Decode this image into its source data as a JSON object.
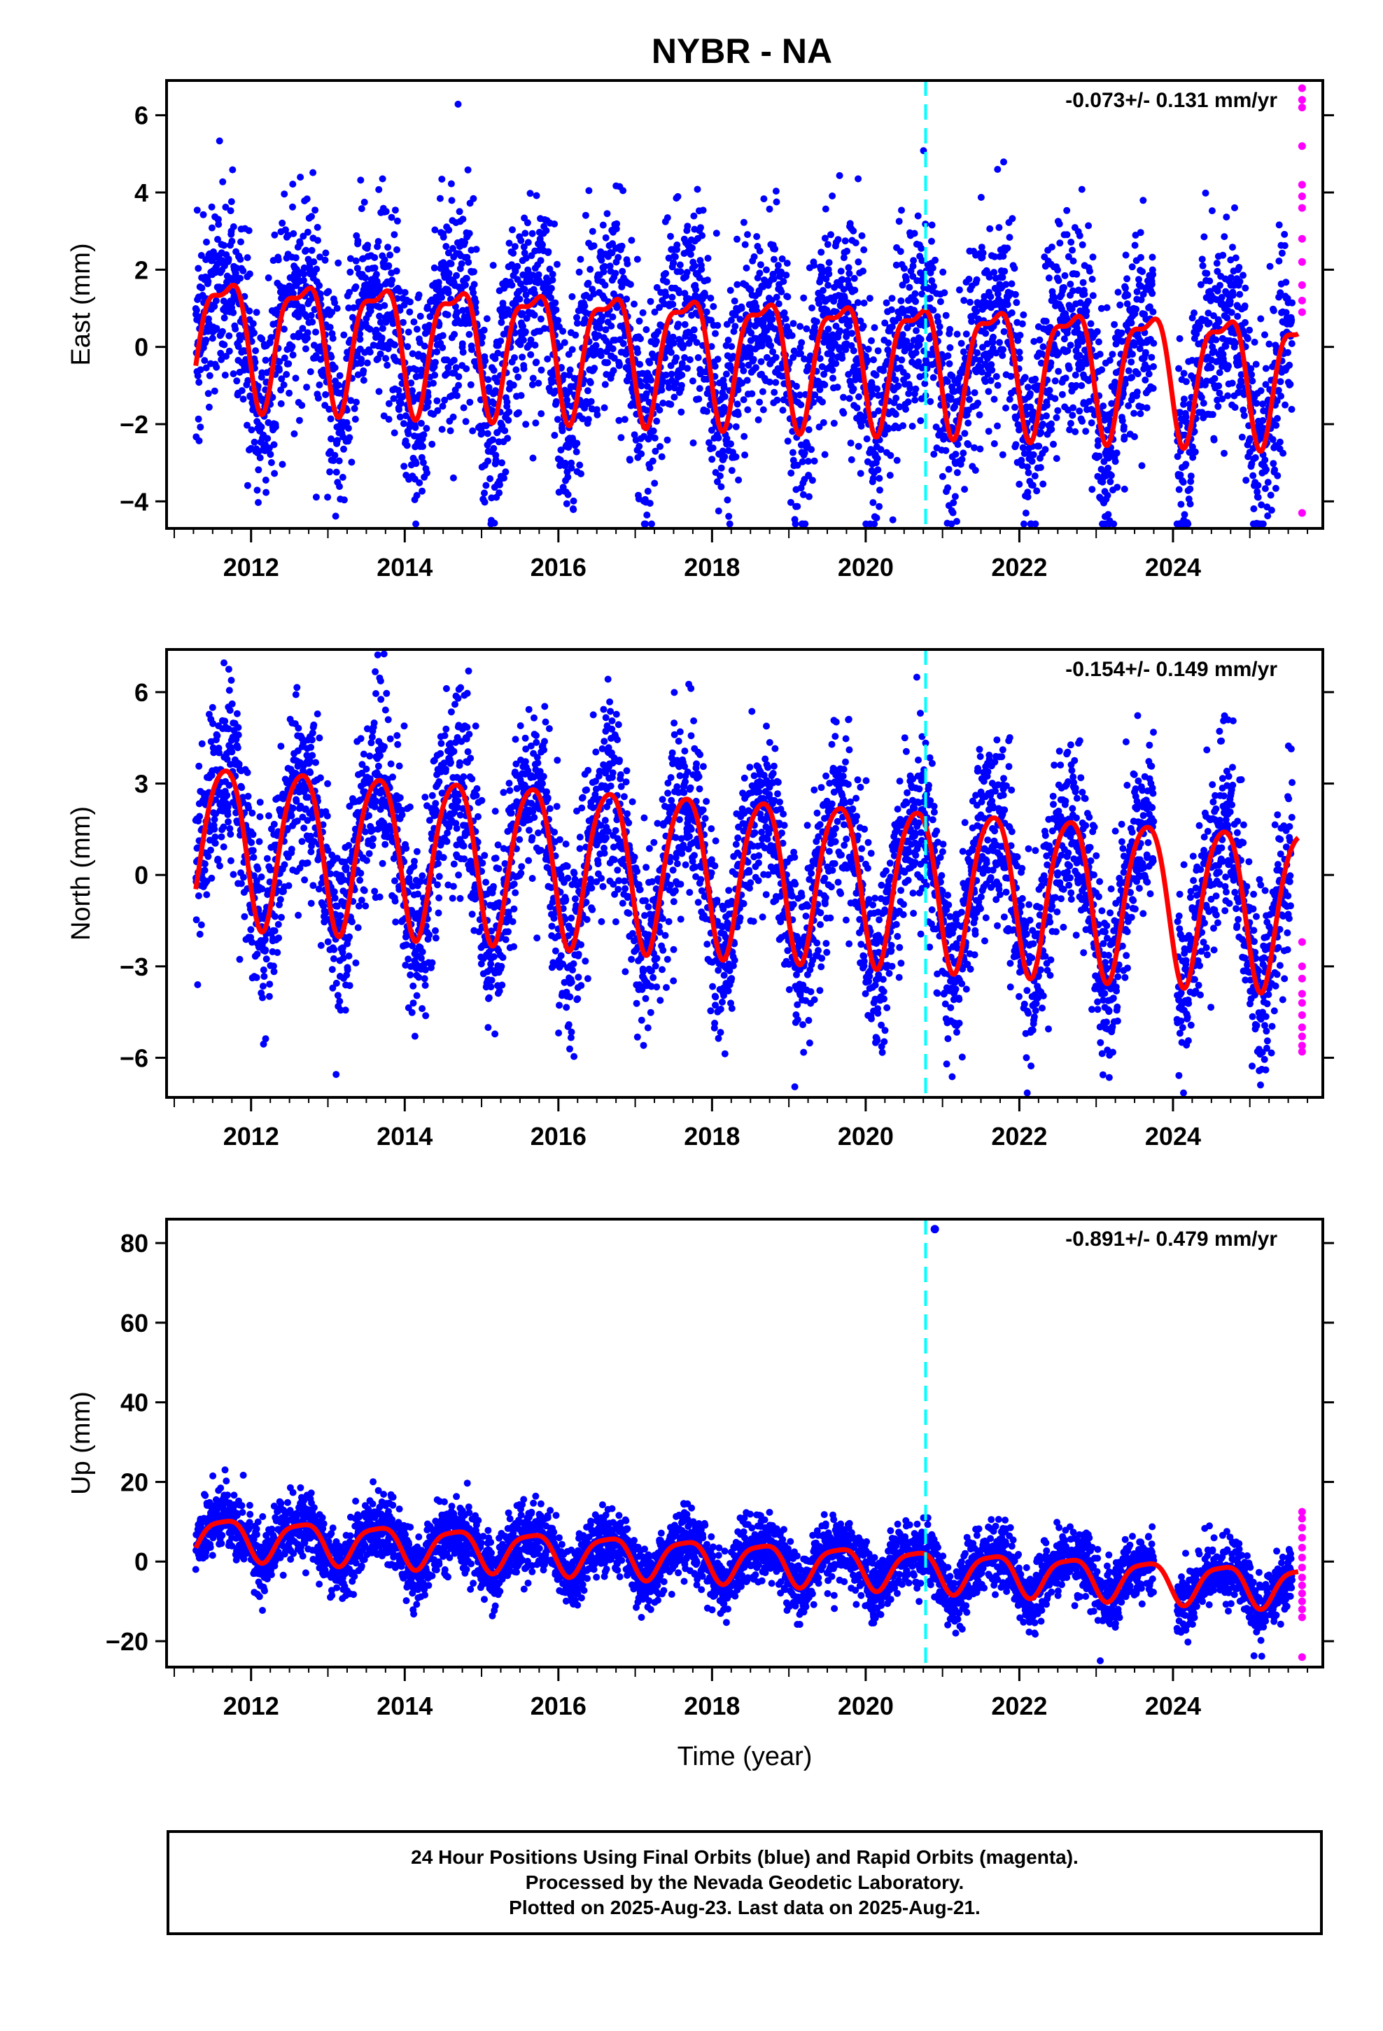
{
  "title": "NYBR - NA",
  "colors": {
    "final_orbits": "#0000ff",
    "rapid_orbits": "#ff00ff",
    "model_fit": "#ff0000",
    "event_marker": "#00ffff",
    "frame": "#000000"
  },
  "chart_data": [
    {
      "type": "scatter",
      "panel": "east",
      "ylabel": "East (mm)",
      "xlabel": "",
      "rate_text": "-0.073+/- 0.131 mm/yr",
      "xlim": [
        2010.9,
        2025.95
      ],
      "ylim": [
        -4.7,
        6.9
      ],
      "xticks": [
        2012,
        2014,
        2016,
        2018,
        2020,
        2022,
        2024
      ],
      "xtick_labels": [
        "2012",
        "2014",
        "2016",
        "2018",
        "2020",
        "2022",
        "2024"
      ],
      "yticks": [
        -4,
        -2,
        0,
        2,
        4,
        6
      ],
      "ytick_labels": [
        "−4",
        "−2",
        "0",
        "2",
        "4",
        "6"
      ],
      "event_line_x": 2020.78,
      "data_start": 2011.28,
      "data_end": 2025.63,
      "gap": [
        2023.75,
        2024.05
      ],
      "fit_trend_mm_per_yr": -0.073,
      "fit_offset": 0.4,
      "seasonal_annual_amp": 1.55,
      "seasonal_semiannual_amp": 0.55,
      "scatter_sd": 1.35,
      "rapid_values": [
        6.7,
        6.4,
        6.2,
        5.2,
        4.2,
        3.9,
        3.6,
        2.8,
        2.2,
        1.6,
        1.2,
        0.9,
        -4.3
      ]
    },
    {
      "type": "scatter",
      "panel": "north",
      "ylabel": "North (mm)",
      "xlabel": "",
      "rate_text": "-0.154+/- 0.149 mm/yr",
      "xlim": [
        2010.9,
        2025.95
      ],
      "ylim": [
        -7.3,
        7.4
      ],
      "xticks": [
        2012,
        2014,
        2016,
        2018,
        2020,
        2022,
        2024
      ],
      "xtick_labels": [
        "2012",
        "2014",
        "2016",
        "2018",
        "2020",
        "2022",
        "2024"
      ],
      "yticks": [
        -6,
        -3,
        0,
        3,
        6
      ],
      "ytick_labels": [
        "−6",
        "−3",
        "0",
        "3",
        "6"
      ],
      "event_line_x": 2020.78,
      "data_start": 2011.28,
      "data_end": 2025.63,
      "gap": [
        2023.75,
        2024.05
      ],
      "fit_trend_mm_per_yr": -0.154,
      "fit_offset": 1.2,
      "seasonal_annual_amp": 2.6,
      "seasonal_semiannual_amp": 0.35,
      "scatter_sd": 1.5,
      "rapid_values": [
        -2.2,
        -3.0,
        -3.4,
        -3.9,
        -4.2,
        -4.6,
        -5.0,
        -5.3,
        -5.6,
        -5.8
      ]
    },
    {
      "type": "scatter",
      "panel": "up",
      "ylabel": "Up (mm)",
      "xlabel": "Time (year)",
      "rate_text": "-0.891+/- 0.479 mm/yr",
      "xlim": [
        2010.9,
        2025.95
      ],
      "ylim": [
        -26.5,
        86
      ],
      "xticks": [
        2012,
        2014,
        2016,
        2018,
        2020,
        2022,
        2024
      ],
      "xtick_labels": [
        "2012",
        "2014",
        "2016",
        "2018",
        "2020",
        "2022",
        "2024"
      ],
      "yticks": [
        -20,
        0,
        20,
        40,
        60,
        80
      ],
      "ytick_labels": [
        "−20",
        "0",
        "20",
        "40",
        "60",
        "80"
      ],
      "event_line_x": 2020.78,
      "data_start": 2011.28,
      "data_end": 2025.63,
      "gap": [
        2023.75,
        2024.05
      ],
      "fit_trend_mm_per_yr": -0.891,
      "fit_offset": 6.5,
      "seasonal_annual_amp": 5.0,
      "seasonal_semiannual_amp": 1.2,
      "scatter_sd": 4.2,
      "outliers": [
        [
          2020.9,
          83.5
        ]
      ],
      "rapid_values": [
        12.5,
        10.8,
        8.5,
        6.0,
        3.5,
        1.0,
        -1.5,
        -4.0,
        -6.0,
        -8.0,
        -10.0,
        -12.0,
        -14.0,
        -24.0
      ]
    }
  ],
  "footer": {
    "line1": "24 Hour Positions Using Final Orbits (blue) and Rapid Orbits (magenta).",
    "line2": "Processed by the Nevada Geodetic Laboratory.",
    "line3": "Plotted on 2025-Aug-23. Last data on 2025-Aug-21."
  }
}
